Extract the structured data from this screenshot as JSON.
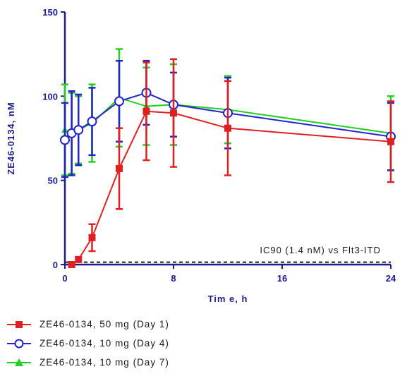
{
  "chart_data": {
    "type": "line",
    "xlabel": "Tim e, h",
    "ylabel": "ZE46-0134, nM",
    "xlim": [
      0,
      24
    ],
    "ylim": [
      0,
      150
    ],
    "xticks": [
      0,
      8,
      16,
      24
    ],
    "yticks": [
      0,
      50,
      100,
      150
    ],
    "x_tick_labels": [
      "0",
      "8",
      "16",
      "24"
    ],
    "y_tick_labels": [
      "0",
      "50",
      "100",
      "150"
    ],
    "reference_line": {
      "y": 1.4,
      "style": "dashed",
      "color": "#1a1a1a",
      "label": "IC90 (1.4 nM) vs  Flt3-ITD"
    },
    "series": [
      {
        "name": "ZE46-0134, 50 mg (Day 1)",
        "color": "#e02020",
        "marker": "square",
        "x": [
          0.5,
          1,
          2,
          4,
          6,
          8,
          12,
          24
        ],
        "y": [
          0,
          3,
          16,
          57,
          91,
          90,
          81,
          73
        ],
        "err": [
          0,
          0,
          8,
          24,
          29,
          32,
          28,
          24
        ]
      },
      {
        "name": "ZE46-0134, 10 mg (Day 4)",
        "color": "#2323c8",
        "marker": "circle",
        "x": [
          0,
          0.5,
          1,
          2,
          4,
          6,
          8,
          12,
          24
        ],
        "y": [
          74,
          78,
          80,
          85,
          97,
          102,
          95,
          90,
          76
        ],
        "err": [
          22,
          25,
          21,
          20,
          24,
          19,
          19,
          21,
          20
        ]
      },
      {
        "name": "ZE46-0134, 10 mg (Day 7)",
        "color": "#20d020",
        "marker": "triangle",
        "x": [
          0,
          0.5,
          1,
          2,
          4,
          6,
          8,
          12,
          24
        ],
        "y": [
          80,
          78,
          80,
          84,
          99,
          94,
          95,
          92,
          78
        ],
        "err": [
          27,
          24,
          20,
          23,
          29,
          23,
          24,
          20,
          22
        ]
      }
    ]
  }
}
